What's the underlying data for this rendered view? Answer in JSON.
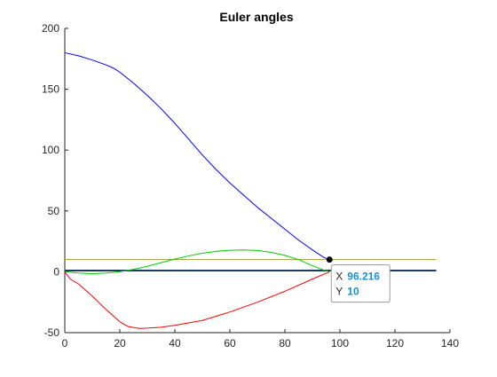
{
  "chart_data": {
    "type": "line",
    "title": "Euler angles",
    "xlabel": "",
    "ylabel": "",
    "xlim": [
      0,
      140
    ],
    "ylim": [
      -50,
      200
    ],
    "xticks": [
      0,
      20,
      40,
      60,
      80,
      100,
      120,
      140
    ],
    "yticks": [
      -50,
      0,
      50,
      100,
      150,
      200
    ],
    "grid": false,
    "series": [
      {
        "color": "#0000ff",
        "x": [
          0,
          2,
          5,
          10,
          15,
          18,
          20,
          25,
          30,
          35,
          40,
          45,
          50,
          55,
          60,
          65,
          70,
          75,
          80,
          85,
          90,
          94,
          96.2
        ],
        "y": [
          180,
          179,
          177.5,
          174,
          170,
          167,
          164,
          155,
          145,
          134,
          122,
          109,
          96,
          84,
          73,
          63,
          53,
          44,
          35,
          26,
          18,
          12,
          10
        ]
      },
      {
        "color": "#ff0000",
        "x": [
          0,
          1,
          2,
          5,
          10,
          15,
          20,
          23,
          27,
          30,
          35,
          40,
          50,
          60,
          70,
          80,
          90,
          96.2
        ],
        "y": [
          0,
          -3,
          -6,
          -10,
          -20,
          -31,
          -41,
          -45,
          -46.5,
          -46.3,
          -45.5,
          -44,
          -40,
          -33,
          -25,
          -16,
          -6,
          0
        ]
      },
      {
        "color": "#00cc00",
        "x": [
          0,
          5,
          10,
          15,
          20,
          25,
          30,
          35,
          40,
          45,
          50,
          55,
          60,
          65,
          70,
          75,
          80,
          85,
          90,
          94,
          96.2
        ],
        "y": [
          0,
          -1,
          -1.5,
          -1,
          0,
          2,
          4.5,
          7.5,
          10.5,
          13,
          15.2,
          16.8,
          17.7,
          18,
          17.5,
          16,
          13.5,
          10,
          5,
          1.5,
          0
        ]
      },
      {
        "color": "#a89a3a",
        "x": [
          0,
          135
        ],
        "y": [
          10,
          10
        ]
      },
      {
        "color": "#1f3a5f",
        "x": [
          0,
          135
        ],
        "y": [
          1,
          1
        ]
      }
    ],
    "datatip": {
      "x_label": "X",
      "x_value": "96.216",
      "y_label": "Y",
      "y_value": "10",
      "x": 96.216,
      "y": 10
    }
  }
}
